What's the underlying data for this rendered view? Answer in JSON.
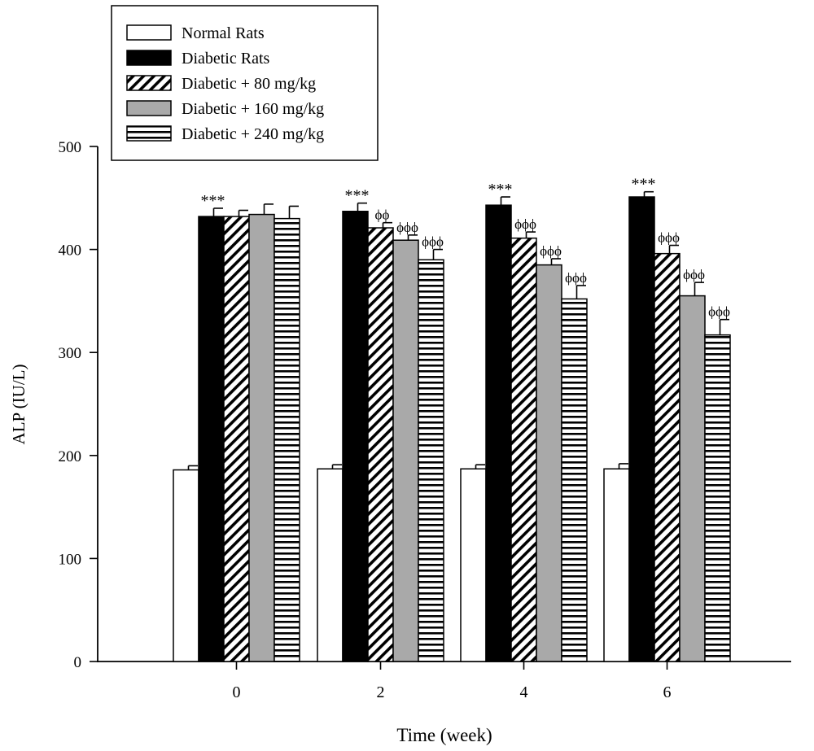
{
  "chart_data": {
    "type": "bar",
    "title": "",
    "xlabel": "Time (week)",
    "ylabel": "ALP (IU/L)",
    "ylim": [
      0,
      500
    ],
    "yticks": [
      "0",
      "100",
      "200",
      "300",
      "400",
      "500"
    ],
    "categories": [
      "0",
      "2",
      "4",
      "6"
    ],
    "legend_position": "top-left",
    "series": [
      {
        "name": "Normal Rats",
        "pattern": "white",
        "values": [
          186,
          187,
          187,
          187
        ],
        "errors": [
          4,
          4,
          4,
          5
        ],
        "annotations": [
          "",
          "",
          "",
          ""
        ]
      },
      {
        "name": "Diabetic Rats",
        "pattern": "black",
        "values": [
          432,
          437,
          443,
          451
        ],
        "errors": [
          8,
          8,
          8,
          5
        ],
        "annotations": [
          "***",
          "***",
          "***",
          "***"
        ]
      },
      {
        "name": "Diabetic + 80 mg/kg",
        "pattern": "diagonal",
        "values": [
          432,
          421,
          411,
          396
        ],
        "errors": [
          6,
          5,
          6,
          8
        ],
        "annotations": [
          "",
          "ϕϕ",
          "ϕϕϕ",
          "ϕϕϕ"
        ]
      },
      {
        "name": "Diabetic + 160 mg/kg",
        "pattern": "gray",
        "values": [
          434,
          409,
          385,
          355
        ],
        "errors": [
          10,
          5,
          6,
          13
        ],
        "annotations": [
          "",
          "ϕϕϕ",
          "ϕϕϕ",
          "ϕϕϕ"
        ]
      },
      {
        "name": "Diabetic + 240 mg/kg",
        "pattern": "horizontal",
        "values": [
          430,
          390,
          352,
          317
        ],
        "errors": [
          12,
          10,
          13,
          15
        ],
        "annotations": [
          "",
          "ϕϕϕ",
          "ϕϕϕ",
          "ϕϕϕ"
        ]
      }
    ]
  }
}
